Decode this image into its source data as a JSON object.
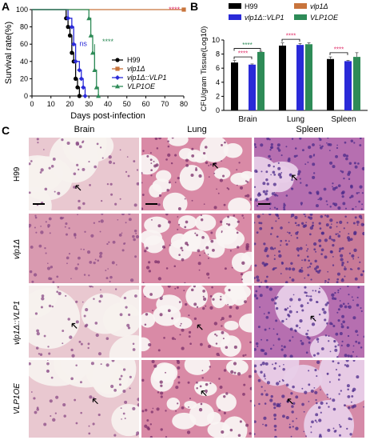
{
  "panels": {
    "a": "A",
    "b": "B",
    "c": "C"
  },
  "chart_data": [
    {
      "type": "line",
      "panel": "A",
      "xlabel": "Days post-infection",
      "ylabel": "Survival rate(%)",
      "xlim": [
        0,
        80
      ],
      "ylim": [
        0,
        100
      ],
      "xticks": [
        "0",
        "10",
        "20",
        "30",
        "40",
        "50",
        "60",
        "70",
        "80"
      ],
      "yticks": [
        "0",
        "20",
        "40",
        "60",
        "80",
        "100"
      ],
      "legend": {
        "placement": "center-right"
      },
      "annotations": [
        "****",
        "ns",
        "****"
      ],
      "series": [
        {
          "name": "H99",
          "color": "#000000",
          "marker": "circle",
          "x": [
            0,
            18,
            19,
            20,
            21,
            22,
            23,
            24,
            25
          ],
          "y": [
            100,
            90,
            80,
            70,
            50,
            40,
            20,
            10,
            0
          ]
        },
        {
          "name": "vlp1Δ",
          "color": "#c8743c",
          "marker": "square",
          "x": [
            0,
            80
          ],
          "y": [
            100,
            100
          ]
        },
        {
          "name": "vlp1Δ::VLP1",
          "color": "#2a2ad8",
          "marker": "diamond",
          "x": [
            0,
            19,
            21,
            22,
            23,
            25,
            26,
            27,
            28
          ],
          "y": [
            100,
            90,
            80,
            60,
            40,
            30,
            20,
            10,
            0
          ]
        },
        {
          "name": "VLP1OE",
          "color": "#2e8b57",
          "marker": "triangle",
          "x": [
            0,
            30,
            31,
            32,
            33,
            34,
            35
          ],
          "y": [
            100,
            90,
            70,
            50,
            30,
            10,
            0
          ]
        }
      ]
    },
    {
      "type": "bar",
      "panel": "B",
      "ylabel": "CFU/gram Tissue(Log10)",
      "ylim": [
        0,
        10
      ],
      "yticks": [
        "0",
        "2",
        "4",
        "6",
        "8",
        "10"
      ],
      "categories": [
        "Brain",
        "Lung",
        "Spleen"
      ],
      "legend": {
        "placement": "top"
      },
      "annotations": [
        "****",
        "****",
        "****",
        "****"
      ],
      "series": [
        {
          "name": "H99",
          "color": "#000000",
          "values": [
            6.8,
            9.2,
            7.3
          ],
          "errors": [
            0.3,
            0.4,
            0.3
          ]
        },
        {
          "name": "vlp1Δ",
          "color": "#c8743c",
          "values": [
            0,
            0,
            0
          ],
          "errors": [
            0,
            0,
            0
          ]
        },
        {
          "name": "vlp1Δ::VLP1",
          "color": "#2a2ad8",
          "values": [
            6.5,
            9.3,
            7.0
          ],
          "errors": [
            0.1,
            0.2,
            0.1
          ]
        },
        {
          "name": "VLP1OE",
          "color": "#2e8b57",
          "values": [
            8.3,
            9.4,
            7.6
          ],
          "errors": [
            0.1,
            0.2,
            0.6
          ]
        }
      ]
    }
  ],
  "histology": {
    "columns": [
      "Brain",
      "Lung",
      "Spleen"
    ],
    "rows": [
      "H99",
      "vlp1Δ",
      "vlp1Δ::VLP1",
      "VLP1OE"
    ]
  }
}
